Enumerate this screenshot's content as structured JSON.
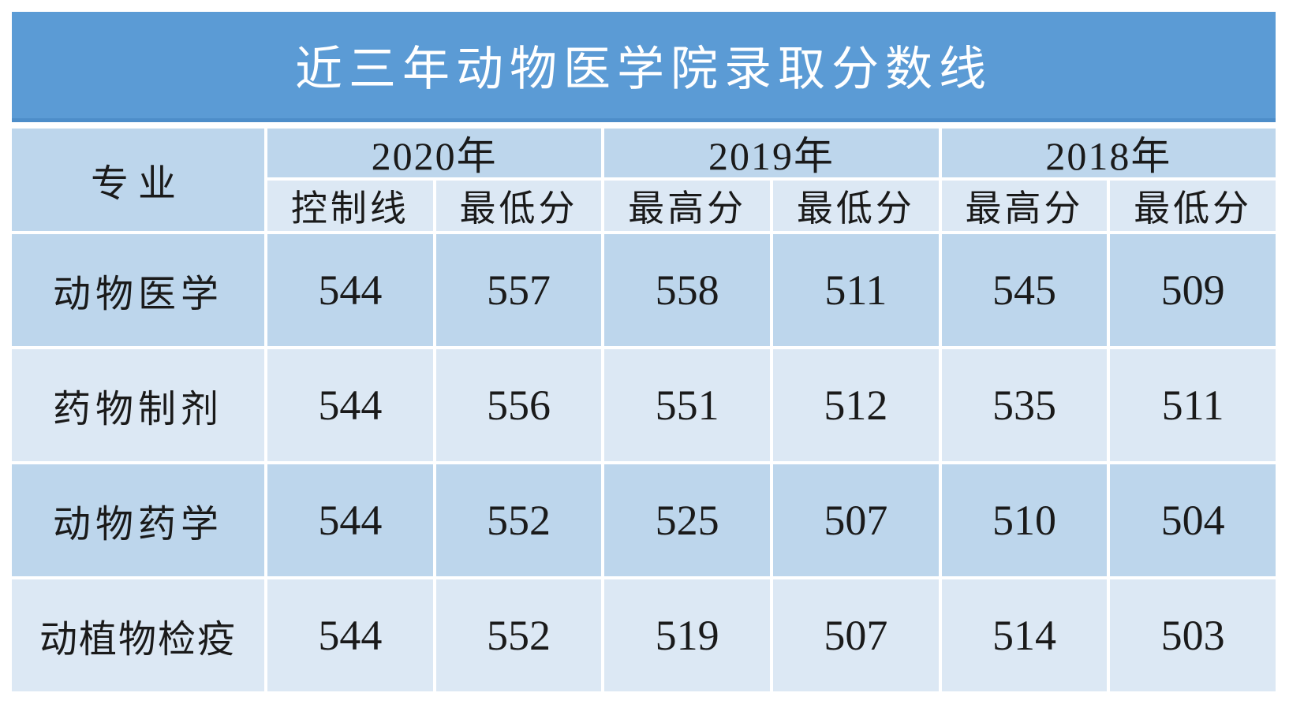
{
  "title": "近三年动物医学院录取分数线",
  "colors": {
    "title_bg": "#5b9bd5",
    "title_border_bottom": "#4d8dc9",
    "title_text": "#ffffff",
    "band_dark": "#bdd6ec",
    "band_light": "#dce8f4",
    "cell_text": "#1a1a1a",
    "page_bg": "#ffffff"
  },
  "table": {
    "corner_header": "专业",
    "year_headers": [
      "2020年",
      "2019年",
      "2018年"
    ],
    "sub_headers": [
      "控制线",
      "最低分",
      "最高分",
      "最低分",
      "最高分",
      "最低分"
    ],
    "rows": [
      {
        "major": "动物医学",
        "values": [
          "544",
          "557",
          "558",
          "511",
          "545",
          "509"
        ]
      },
      {
        "major": "药物制剂",
        "values": [
          "544",
          "556",
          "551",
          "512",
          "535",
          "511"
        ]
      },
      {
        "major": "动物药学",
        "values": [
          "544",
          "552",
          "525",
          "507",
          "510",
          "504"
        ]
      },
      {
        "major": "动植物检疫",
        "values": [
          "544",
          "552",
          "519",
          "507",
          "514",
          "503"
        ]
      }
    ]
  },
  "chart_data": {
    "type": "table",
    "title": "近三年动物医学院录取分数线",
    "columns": [
      "专业",
      "2020年 控制线",
      "2020年 最低分",
      "2019年 最高分",
      "2019年 最低分",
      "2018年 最高分",
      "2018年 最低分"
    ],
    "rows": [
      [
        "动物医学",
        544,
        557,
        558,
        511,
        545,
        509
      ],
      [
        "药物制剂",
        544,
        556,
        551,
        512,
        535,
        511
      ],
      [
        "动物药学",
        544,
        552,
        525,
        507,
        510,
        504
      ],
      [
        "动植物检疫",
        544,
        552,
        519,
        507,
        514,
        503
      ]
    ]
  }
}
